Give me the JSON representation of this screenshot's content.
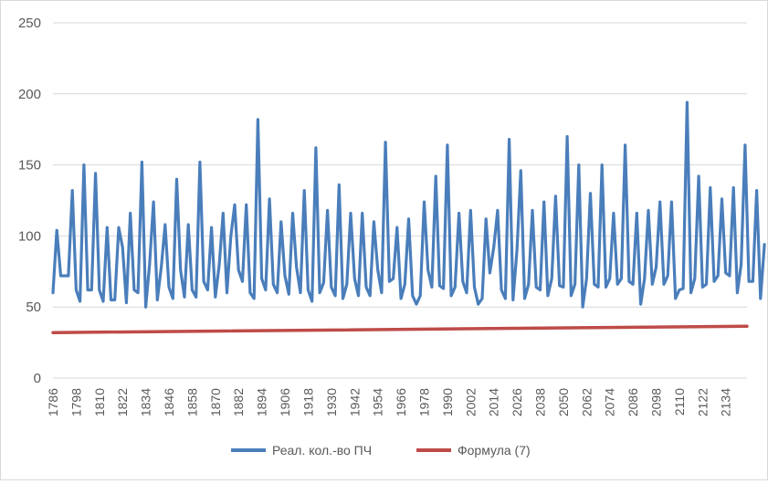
{
  "chart_data": {
    "type": "line",
    "title": "",
    "xlabel": "",
    "ylabel": "",
    "ylim": [
      0,
      250
    ],
    "yticks": [
      "0",
      "50",
      "100",
      "150",
      "200",
      "250"
    ],
    "grid": true,
    "legend_position": "bottom",
    "x_start": 1786,
    "x_end": 2145,
    "x_step": 2,
    "x_tick_labels": [
      "1786",
      "1798",
      "1810",
      "1822",
      "1834",
      "1846",
      "1858",
      "1870",
      "1882",
      "1894",
      "1906",
      "1918",
      "1930",
      "1942",
      "1954",
      "1966",
      "1978",
      "1990",
      "2002",
      "2014",
      "2026",
      "2038",
      "2050",
      "2062",
      "2074",
      "2086",
      "2098",
      "2110",
      "2122",
      "2134"
    ],
    "series": [
      {
        "name": "Реал. кол.-во ПЧ",
        "color": "#4a7ebb",
        "values": [
          60,
          104,
          72,
          72,
          72,
          132,
          62,
          54,
          150,
          62,
          62,
          144,
          62,
          54,
          106,
          55,
          55,
          106,
          92,
          53,
          116,
          62,
          60,
          152,
          50,
          80,
          124,
          55,
          78,
          108,
          64,
          56,
          140,
          76,
          57,
          108,
          62,
          57,
          152,
          68,
          62,
          106,
          57,
          80,
          116,
          60,
          100,
          122,
          76,
          68,
          122,
          60,
          56,
          182,
          70,
          62,
          126,
          66,
          60,
          110,
          72,
          59,
          116,
          78,
          60,
          132,
          62,
          54,
          162,
          60,
          67,
          118,
          64,
          58,
          136,
          56,
          66,
          116,
          70,
          58,
          116,
          64,
          58,
          110,
          76,
          60,
          166,
          68,
          70,
          106,
          56,
          66,
          112,
          58,
          52,
          58,
          124,
          76,
          64,
          142,
          65,
          63,
          164,
          58,
          64,
          116,
          68,
          60,
          118,
          64,
          52,
          56,
          112,
          74,
          92,
          118,
          62,
          56,
          168,
          55,
          90,
          146,
          56,
          66,
          118,
          64,
          62,
          124,
          58,
          70,
          128,
          65,
          64,
          170,
          58,
          66,
          150,
          50,
          70,
          130,
          66,
          64,
          150,
          64,
          70,
          116,
          66,
          70,
          164,
          68,
          66,
          116,
          52,
          70,
          118,
          66,
          78,
          124,
          66,
          72,
          124,
          56,
          62,
          63,
          194,
          60,
          70,
          142,
          64,
          66,
          134,
          68,
          72,
          126,
          74,
          72,
          134,
          60,
          80,
          164,
          68,
          68,
          132,
          56,
          94
        ]
      },
      {
        "name": "Формула (7)",
        "color": "#be4b48",
        "values": [
          32,
          36.5
        ]
      }
    ]
  }
}
